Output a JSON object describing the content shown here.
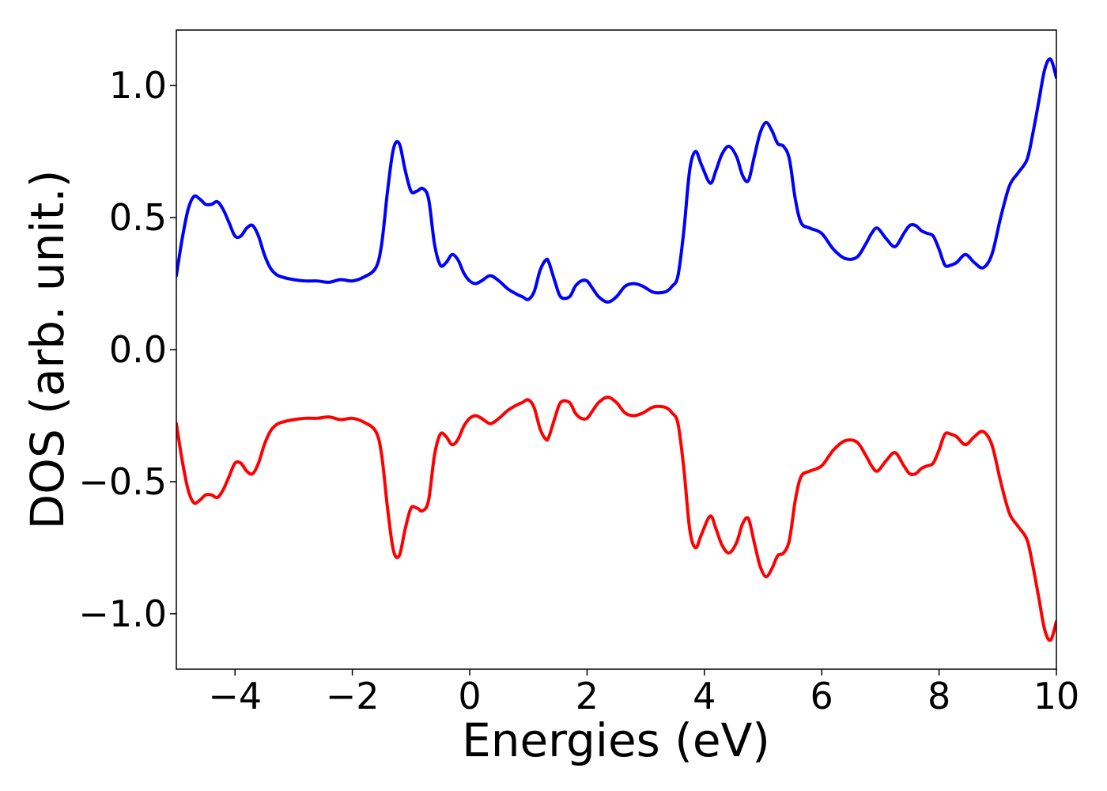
{
  "chart_data": {
    "type": "line",
    "title": "",
    "xlabel": "Energies (eV)",
    "ylabel": "DOS (arb. unit.)",
    "xlim": [
      -5,
      10
    ],
    "ylim": [
      -1.21,
      1.21
    ],
    "x_ticks": [
      -4,
      -2,
      0,
      2,
      4,
      6,
      8,
      10
    ],
    "x_tick_labels": [
      "−4",
      "−2",
      "0",
      "2",
      "4",
      "6",
      "8",
      "10"
    ],
    "y_ticks": [
      1.0,
      0.5,
      0.0,
      -0.5,
      -1.0
    ],
    "y_tick_labels": [
      "1.0",
      "0.5",
      "0.0",
      "−0.5",
      "−1.0"
    ],
    "grid": false,
    "legend": "none",
    "series": [
      {
        "color": "#0000ff",
        "x": [
          -5.0,
          -4.9,
          -4.8,
          -4.7,
          -4.6,
          -4.5,
          -4.4,
          -4.3,
          -4.2,
          -4.1,
          -4.0,
          -3.9,
          -3.8,
          -3.7,
          -3.6,
          -3.5,
          -3.4,
          -3.3,
          -3.2,
          -3.0,
          -2.8,
          -2.6,
          -2.4,
          -2.2,
          -2.0,
          -1.8,
          -1.6,
          -1.5,
          -1.4,
          -1.3,
          -1.2,
          -1.1,
          -1.0,
          -0.9,
          -0.8,
          -0.7,
          -0.6,
          -0.5,
          -0.4,
          -0.3,
          -0.2,
          -0.1,
          0.0,
          0.1,
          0.2,
          0.35,
          0.5,
          0.65,
          0.8,
          0.9,
          1.0,
          1.1,
          1.2,
          1.3,
          1.35,
          1.45,
          1.55,
          1.7,
          1.8,
          1.9,
          2.0,
          2.1,
          2.2,
          2.35,
          2.5,
          2.65,
          2.8,
          2.95,
          3.1,
          3.2,
          3.35,
          3.45,
          3.55,
          3.65,
          3.75,
          3.85,
          3.95,
          4.1,
          4.2,
          4.3,
          4.42,
          4.55,
          4.65,
          4.75,
          4.85,
          4.95,
          5.05,
          5.15,
          5.25,
          5.35,
          5.45,
          5.55,
          5.65,
          5.8,
          6.0,
          6.2,
          6.4,
          6.6,
          6.75,
          6.85,
          6.95,
          7.1,
          7.25,
          7.4,
          7.5,
          7.6,
          7.7,
          7.8,
          7.9,
          8.0,
          8.1,
          8.2,
          8.3,
          8.45,
          8.6,
          8.75,
          8.9,
          9.05,
          9.2,
          9.35,
          9.5,
          9.6,
          9.7,
          9.8,
          9.9,
          10.0
        ],
        "y": [
          0.28,
          0.42,
          0.53,
          0.58,
          0.57,
          0.55,
          0.55,
          0.56,
          0.53,
          0.48,
          0.43,
          0.43,
          0.46,
          0.47,
          0.43,
          0.36,
          0.31,
          0.285,
          0.275,
          0.265,
          0.26,
          0.26,
          0.255,
          0.265,
          0.26,
          0.275,
          0.31,
          0.4,
          0.6,
          0.76,
          0.78,
          0.68,
          0.6,
          0.6,
          0.61,
          0.57,
          0.4,
          0.32,
          0.33,
          0.36,
          0.34,
          0.29,
          0.26,
          0.25,
          0.26,
          0.28,
          0.26,
          0.23,
          0.21,
          0.2,
          0.19,
          0.22,
          0.3,
          0.34,
          0.33,
          0.26,
          0.2,
          0.2,
          0.24,
          0.26,
          0.26,
          0.23,
          0.2,
          0.18,
          0.2,
          0.24,
          0.25,
          0.24,
          0.22,
          0.215,
          0.22,
          0.24,
          0.28,
          0.45,
          0.68,
          0.75,
          0.7,
          0.63,
          0.68,
          0.74,
          0.77,
          0.73,
          0.66,
          0.64,
          0.73,
          0.82,
          0.86,
          0.83,
          0.78,
          0.77,
          0.72,
          0.57,
          0.48,
          0.46,
          0.44,
          0.38,
          0.345,
          0.35,
          0.4,
          0.44,
          0.46,
          0.42,
          0.39,
          0.44,
          0.47,
          0.47,
          0.45,
          0.44,
          0.43,
          0.38,
          0.32,
          0.32,
          0.33,
          0.36,
          0.33,
          0.31,
          0.36,
          0.5,
          0.62,
          0.67,
          0.72,
          0.82,
          0.94,
          1.06,
          1.1,
          1.03
        ]
      },
      {
        "color": "#ff0000",
        "x": [
          -5.0,
          -4.9,
          -4.8,
          -4.7,
          -4.6,
          -4.5,
          -4.4,
          -4.3,
          -4.2,
          -4.1,
          -4.0,
          -3.9,
          -3.8,
          -3.7,
          -3.6,
          -3.5,
          -3.4,
          -3.3,
          -3.2,
          -3.0,
          -2.8,
          -2.6,
          -2.4,
          -2.2,
          -2.0,
          -1.8,
          -1.6,
          -1.5,
          -1.4,
          -1.3,
          -1.2,
          -1.1,
          -1.0,
          -0.9,
          -0.8,
          -0.7,
          -0.6,
          -0.5,
          -0.4,
          -0.3,
          -0.2,
          -0.1,
          0.0,
          0.1,
          0.2,
          0.35,
          0.5,
          0.65,
          0.8,
          0.9,
          1.0,
          1.1,
          1.2,
          1.3,
          1.35,
          1.45,
          1.55,
          1.7,
          1.8,
          1.9,
          2.0,
          2.1,
          2.2,
          2.35,
          2.5,
          2.65,
          2.8,
          2.95,
          3.1,
          3.2,
          3.35,
          3.45,
          3.55,
          3.65,
          3.75,
          3.85,
          3.95,
          4.1,
          4.2,
          4.3,
          4.42,
          4.55,
          4.65,
          4.75,
          4.85,
          4.95,
          5.05,
          5.15,
          5.25,
          5.35,
          5.45,
          5.55,
          5.65,
          5.8,
          6.0,
          6.2,
          6.4,
          6.6,
          6.75,
          6.85,
          6.95,
          7.1,
          7.25,
          7.4,
          7.5,
          7.6,
          7.7,
          7.8,
          7.9,
          8.0,
          8.1,
          8.2,
          8.3,
          8.45,
          8.6,
          8.75,
          8.9,
          9.05,
          9.2,
          9.35,
          9.5,
          9.6,
          9.7,
          9.8,
          9.9,
          10.0
        ],
        "y": [
          -0.28,
          -0.42,
          -0.53,
          -0.58,
          -0.57,
          -0.55,
          -0.55,
          -0.56,
          -0.53,
          -0.48,
          -0.43,
          -0.43,
          -0.46,
          -0.47,
          -0.43,
          -0.36,
          -0.31,
          -0.285,
          -0.275,
          -0.265,
          -0.26,
          -0.26,
          -0.255,
          -0.265,
          -0.26,
          -0.275,
          -0.31,
          -0.4,
          -0.6,
          -0.76,
          -0.78,
          -0.68,
          -0.6,
          -0.6,
          -0.61,
          -0.57,
          -0.4,
          -0.32,
          -0.33,
          -0.36,
          -0.34,
          -0.29,
          -0.26,
          -0.25,
          -0.26,
          -0.28,
          -0.26,
          -0.23,
          -0.21,
          -0.2,
          -0.19,
          -0.22,
          -0.3,
          -0.34,
          -0.33,
          -0.26,
          -0.2,
          -0.2,
          -0.24,
          -0.26,
          -0.26,
          -0.23,
          -0.2,
          -0.18,
          -0.2,
          -0.24,
          -0.25,
          -0.24,
          -0.22,
          -0.215,
          -0.22,
          -0.24,
          -0.28,
          -0.45,
          -0.68,
          -0.75,
          -0.7,
          -0.63,
          -0.68,
          -0.74,
          -0.77,
          -0.73,
          -0.66,
          -0.64,
          -0.73,
          -0.82,
          -0.86,
          -0.83,
          -0.78,
          -0.77,
          -0.72,
          -0.57,
          -0.48,
          -0.46,
          -0.44,
          -0.38,
          -0.345,
          -0.35,
          -0.4,
          -0.44,
          -0.46,
          -0.42,
          -0.39,
          -0.44,
          -0.47,
          -0.47,
          -0.45,
          -0.44,
          -0.43,
          -0.38,
          -0.32,
          -0.32,
          -0.33,
          -0.36,
          -0.33,
          -0.31,
          -0.36,
          -0.5,
          -0.62,
          -0.67,
          -0.72,
          -0.82,
          -0.94,
          -1.06,
          -1.1,
          -1.03
        ]
      }
    ]
  }
}
